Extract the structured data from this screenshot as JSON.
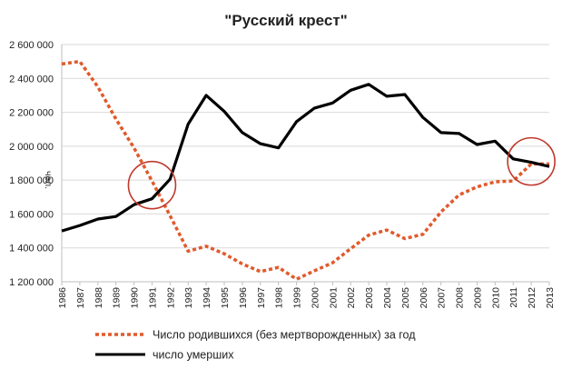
{
  "chart_data": {
    "type": "line",
    "title": "\"Русский крест\"",
    "ylabel": "чел.",
    "xlabel": "",
    "ylim": [
      1200000,
      2600000
    ],
    "y_ticks": [
      {
        "value": 1200000,
        "label": "1 200 000"
      },
      {
        "value": 1400000,
        "label": "1 400 000"
      },
      {
        "value": 1600000,
        "label": "1 600 000"
      },
      {
        "value": 1800000,
        "label": "1 800 000"
      },
      {
        "value": 2000000,
        "label": "2 000 000"
      },
      {
        "value": 2200000,
        "label": "2 200 000"
      },
      {
        "value": 2400000,
        "label": "2 400 000"
      },
      {
        "value": 2600000,
        "label": "2 600 000"
      }
    ],
    "x": [
      "1986",
      "1987",
      "1988",
      "1989",
      "1990",
      "1991",
      "1992",
      "1993",
      "1994",
      "1995",
      "1996",
      "1997",
      "1998",
      "1999",
      "2000",
      "2001",
      "2002",
      "2003",
      "2004",
      "2005",
      "2006",
      "2007",
      "2008",
      "2009",
      "2010",
      "2011",
      "2012",
      "2013"
    ],
    "series": [
      {
        "name": "Число родившихся (без мертворожденных) за год",
        "color": "#e05a2b",
        "style": "dotted",
        "values": [
          2485000,
          2500000,
          2350000,
          2160000,
          1990000,
          1795000,
          1590000,
          1380000,
          1410000,
          1365000,
          1305000,
          1260000,
          1285000,
          1215000,
          1265000,
          1312000,
          1395000,
          1475000,
          1505000,
          1455000,
          1480000,
          1612000,
          1712000,
          1760000,
          1790000,
          1795000,
          1895000,
          1895000
        ]
      },
      {
        "name": "число умерших",
        "color": "#000000",
        "style": "solid",
        "values": [
          1500000,
          1532000,
          1570000,
          1585000,
          1655000,
          1690000,
          1805000,
          2130000,
          2300000,
          2205000,
          2080000,
          2015000,
          1990000,
          2145000,
          2225000,
          2255000,
          2330000,
          2365000,
          2295000,
          2305000,
          2170000,
          2080000,
          2075000,
          2010000,
          2030000,
          1925000,
          1905000,
          1880000
        ]
      }
    ],
    "annotations": [
      {
        "type": "circle",
        "x": "1991",
        "y": 1770000,
        "color": "#c0392b"
      },
      {
        "type": "circle",
        "x": "2012",
        "y": 1910000,
        "color": "#c0392b"
      }
    ],
    "grid": true,
    "legend_position": "bottom"
  }
}
